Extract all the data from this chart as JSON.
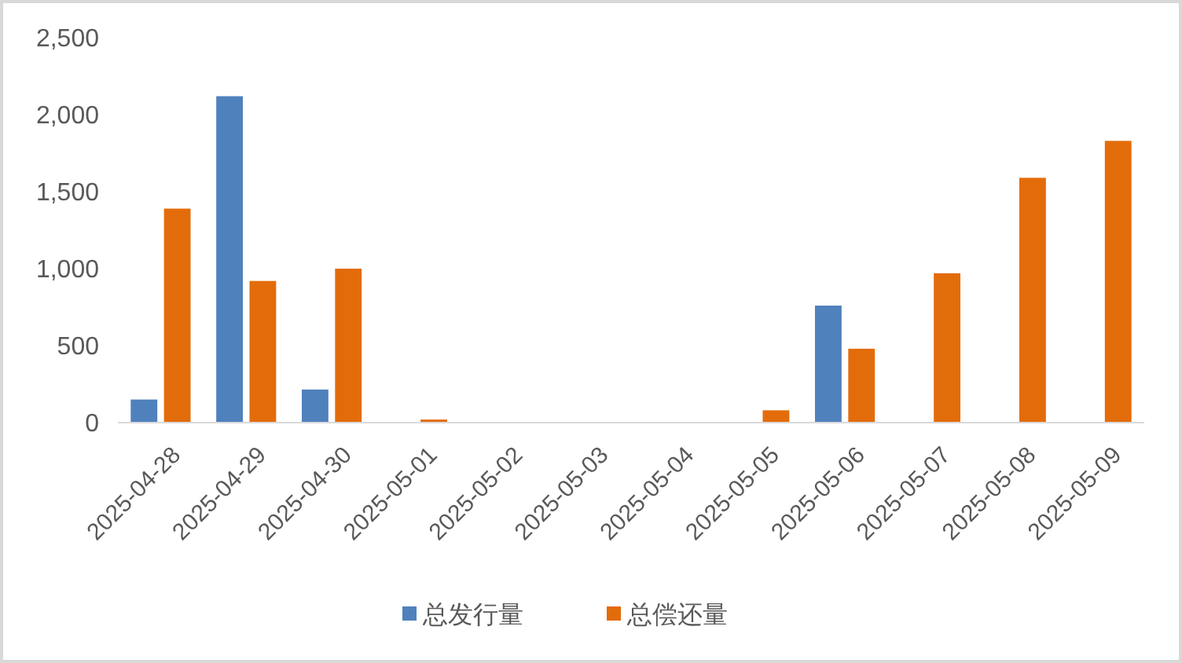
{
  "chart_data": {
    "type": "bar",
    "categories": [
      "2025-04-28",
      "2025-04-29",
      "2025-04-30",
      "2025-05-01",
      "2025-05-02",
      "2025-05-03",
      "2025-05-04",
      "2025-05-05",
      "2025-05-06",
      "2025-05-07",
      "2025-05-08",
      "2025-05-09"
    ],
    "series": [
      {
        "name": "总发行量",
        "color": "#4f81bd",
        "values": [
          150,
          2120,
          215,
          0,
          0,
          0,
          0,
          0,
          760,
          0,
          0,
          0
        ]
      },
      {
        "name": "总偿还量",
        "color": "#e36c0a",
        "values": [
          1390,
          920,
          1000,
          20,
          0,
          0,
          0,
          80,
          480,
          970,
          1590,
          1830
        ]
      }
    ],
    "ylim": [
      0,
      2500
    ],
    "yticks": [
      0,
      500,
      {
        "value": 1000,
        "label": "1,000"
      },
      {
        "value": 1500,
        "label": "1,500"
      },
      {
        "value": 2000,
        "label": "2,000"
      },
      {
        "value": 2500,
        "label": "2,500"
      }
    ],
    "grid": false,
    "legend": "bottom"
  }
}
